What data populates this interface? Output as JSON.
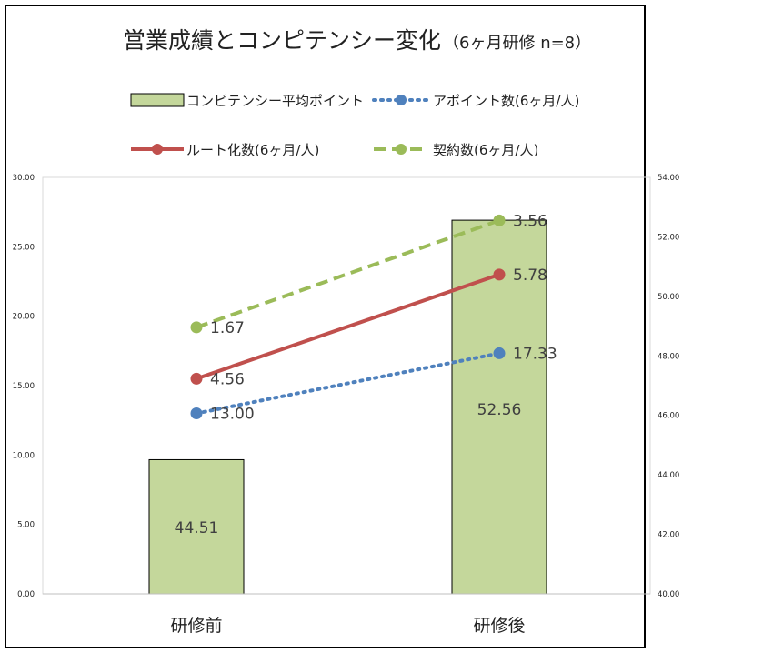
{
  "chart_data": {
    "type": "bar+line",
    "title": "営業成績とコンピテンシー変化",
    "subtitle": "（6ヶ月研修  n=8）",
    "categories": [
      "研修前",
      "研修後"
    ],
    "bar_series": {
      "name": "コンピテンシー平均ポイント",
      "axis": "right",
      "values": [
        44.51,
        52.56
      ],
      "labels": [
        "44.51",
        "52.56"
      ],
      "color": "#c4d79b"
    },
    "line_series": [
      {
        "name": "アポイント数(6ヶ月/人)",
        "axis": "left",
        "style": "dotted",
        "values": [
          13.0,
          17.33
        ],
        "labels": [
          "13.00",
          "17.33"
        ],
        "color": "#4f81bd"
      },
      {
        "name": "ルート化数(6ヶ月/人)",
        "axis": "left",
        "style": "solid",
        "values": [
          4.56,
          5.78
        ],
        "plot_values": [
          15.5,
          23.0
        ],
        "labels": [
          "4.56",
          "5.78"
        ],
        "color": "#c0504d"
      },
      {
        "name": "契約数(6ヶ月/人)",
        "axis": "left",
        "style": "dashed",
        "values": [
          1.67,
          3.56
        ],
        "plot_values": [
          19.2,
          26.9
        ],
        "labels": [
          "1.67",
          "3.56"
        ],
        "color": "#9bbb59"
      }
    ],
    "legend": [
      {
        "label": "コンピテンシー平均ポイント",
        "kind": "bar",
        "color": "#c4d79b"
      },
      {
        "label": "アポイント数(6ヶ月/人)",
        "kind": "dotted",
        "color": "#4f81bd"
      },
      {
        "label": "ルート化数(6ヶ月/人)",
        "kind": "solid",
        "color": "#c0504d"
      },
      {
        "label": "契約数(6ヶ月/人)",
        "kind": "dashed",
        "color": "#9bbb59"
      }
    ],
    "y_left": {
      "min": 0,
      "max": 30,
      "ticks": [
        "0.00",
        "5.00",
        "10.00",
        "15.00",
        "20.00",
        "25.00",
        "30.00"
      ]
    },
    "y_right": {
      "min": 40,
      "max": 54,
      "ticks": [
        "40.00",
        "42.00",
        "44.00",
        "46.00",
        "48.00",
        "50.00",
        "52.00",
        "54.00"
      ]
    },
    "legend_position": "top"
  }
}
